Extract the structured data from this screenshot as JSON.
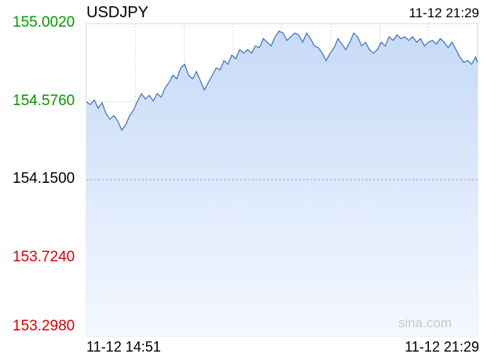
{
  "header": {
    "symbol": "USDJPY",
    "timestamp": "11-12 21:29"
  },
  "watermark": "sina.com",
  "colors": {
    "up": "#009900",
    "down": "#dd0000",
    "neutral": "#000000",
    "line": "#3a6fc2",
    "fill_top": "#c6daf7",
    "fill_bottom": "#f4f8ff",
    "grid": "#d8d8d8",
    "baseline": "#9aa6c8"
  },
  "chart_data": {
    "type": "area",
    "title": "USDJPY",
    "xlabel": "",
    "ylabel": "",
    "x_tick_labels": [
      "11-12 14:51",
      "11-12 21:29"
    ],
    "y_tick_labels": [
      "155.0020",
      "154.5760",
      "154.1500",
      "153.7240",
      "153.2980"
    ],
    "ylim": [
      153.298,
      155.002
    ],
    "reference_price": 154.15,
    "grid": true,
    "x_range_minutes": [
      0,
      398
    ],
    "series": [
      {
        "points": [
          [
            0,
            154.575
          ],
          [
            4,
            154.56
          ],
          [
            8,
            154.585
          ],
          [
            12,
            154.54
          ],
          [
            16,
            154.57
          ],
          [
            20,
            154.51
          ],
          [
            24,
            154.48
          ],
          [
            28,
            154.5
          ],
          [
            32,
            154.47
          ],
          [
            36,
            154.42
          ],
          [
            40,
            154.45
          ],
          [
            44,
            154.5
          ],
          [
            48,
            154.53
          ],
          [
            52,
            154.58
          ],
          [
            56,
            154.62
          ],
          [
            60,
            154.59
          ],
          [
            64,
            154.61
          ],
          [
            68,
            154.58
          ],
          [
            72,
            154.62
          ],
          [
            76,
            154.6
          ],
          [
            80,
            154.65
          ],
          [
            84,
            154.68
          ],
          [
            88,
            154.72
          ],
          [
            92,
            154.7
          ],
          [
            96,
            154.76
          ],
          [
            100,
            154.78
          ],
          [
            104,
            154.72
          ],
          [
            108,
            154.7
          ],
          [
            112,
            154.74
          ],
          [
            116,
            154.69
          ],
          [
            120,
            154.64
          ],
          [
            124,
            154.68
          ],
          [
            128,
            154.72
          ],
          [
            132,
            154.76
          ],
          [
            136,
            154.75
          ],
          [
            140,
            154.8
          ],
          [
            144,
            154.78
          ],
          [
            148,
            154.83
          ],
          [
            152,
            154.81
          ],
          [
            156,
            154.86
          ],
          [
            160,
            154.84
          ],
          [
            164,
            154.86
          ],
          [
            168,
            154.84
          ],
          [
            172,
            154.88
          ],
          [
            176,
            154.87
          ],
          [
            180,
            154.92
          ],
          [
            184,
            154.9
          ],
          [
            188,
            154.88
          ],
          [
            192,
            154.93
          ],
          [
            196,
            154.96
          ],
          [
            200,
            154.95
          ],
          [
            204,
            154.91
          ],
          [
            208,
            154.93
          ],
          [
            212,
            154.95
          ],
          [
            216,
            154.94
          ],
          [
            220,
            154.9
          ],
          [
            224,
            154.95
          ],
          [
            228,
            154.92
          ],
          [
            232,
            154.88
          ],
          [
            236,
            154.87
          ],
          [
            240,
            154.84
          ],
          [
            244,
            154.8
          ],
          [
            248,
            154.84
          ],
          [
            252,
            154.87
          ],
          [
            256,
            154.92
          ],
          [
            260,
            154.89
          ],
          [
            264,
            154.86
          ],
          [
            268,
            154.9
          ],
          [
            272,
            154.95
          ],
          [
            276,
            154.93
          ],
          [
            280,
            154.88
          ],
          [
            284,
            154.9
          ],
          [
            288,
            154.86
          ],
          [
            292,
            154.84
          ],
          [
            296,
            154.86
          ],
          [
            300,
            154.9
          ],
          [
            304,
            154.88
          ],
          [
            308,
            154.93
          ],
          [
            312,
            154.91
          ],
          [
            316,
            154.94
          ],
          [
            320,
            154.92
          ],
          [
            324,
            154.93
          ],
          [
            328,
            154.91
          ],
          [
            332,
            154.93
          ],
          [
            336,
            154.9
          ],
          [
            340,
            154.92
          ],
          [
            344,
            154.88
          ],
          [
            348,
            154.9
          ],
          [
            352,
            154.91
          ],
          [
            356,
            154.89
          ],
          [
            360,
            154.92
          ],
          [
            364,
            154.9
          ],
          [
            368,
            154.87
          ],
          [
            372,
            154.9
          ],
          [
            376,
            154.86
          ],
          [
            380,
            154.82
          ],
          [
            384,
            154.79
          ],
          [
            388,
            154.8
          ],
          [
            392,
            154.78
          ],
          [
            396,
            154.82
          ],
          [
            398,
            154.79
          ]
        ]
      }
    ]
  }
}
